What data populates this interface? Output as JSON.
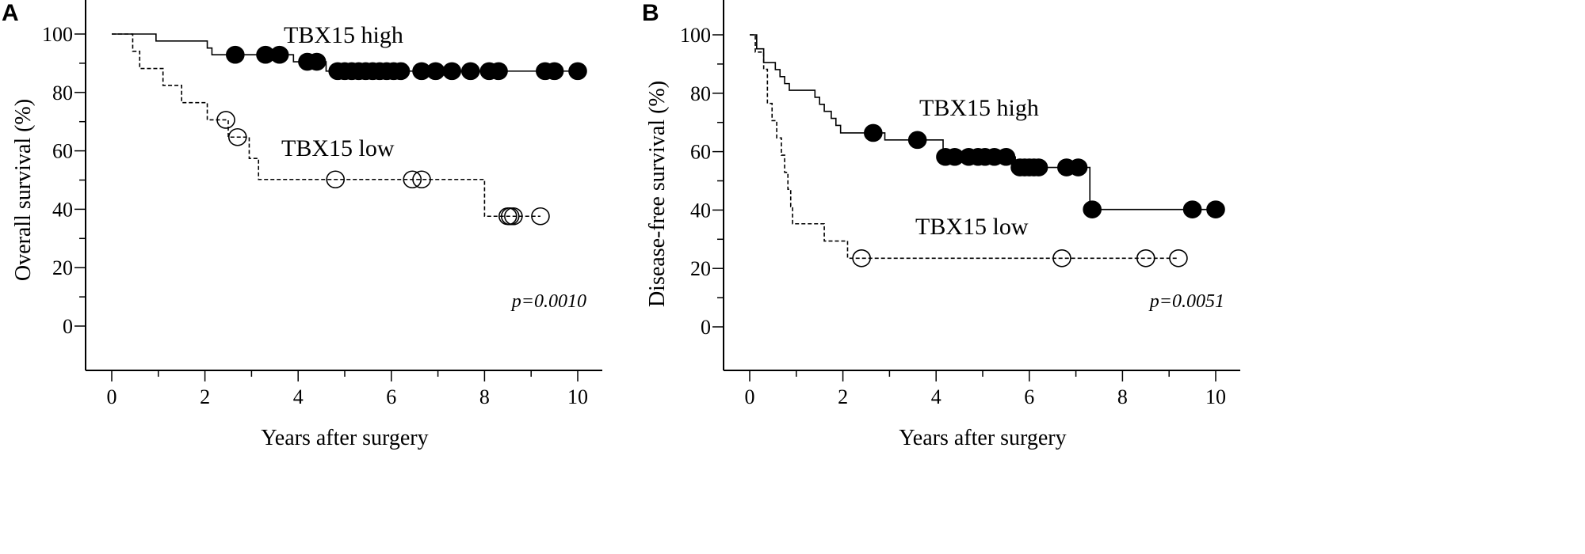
{
  "chart_data": [
    {
      "type": "line",
      "panel": "A",
      "xlabel": "Years after surgery",
      "ylabel": "Overall survival (%)",
      "xlim": [
        0,
        10
      ],
      "ylim": [
        0,
        100
      ],
      "xticks": [
        0,
        2,
        4,
        6,
        8,
        10
      ],
      "yticks": [
        0,
        20,
        40,
        60,
        80,
        100
      ],
      "annotation": "p=0.0010",
      "series": [
        {
          "name": "TBX15 high",
          "style": "solid",
          "marker": "filled-circle",
          "steps": [
            [
              0,
              100
            ],
            [
              0.95,
              97.6
            ],
            [
              2.05,
              95.2
            ],
            [
              2.15,
              92.9
            ],
            [
              3.9,
              90.5
            ],
            [
              4.6,
              87.3
            ],
            [
              10,
              87.3
            ]
          ],
          "censored": [
            [
              2.65,
              92.9
            ],
            [
              3.3,
              92.9
            ],
            [
              3.6,
              92.9
            ],
            [
              4.2,
              90.5
            ],
            [
              4.4,
              90.5
            ],
            [
              4.85,
              87.3
            ],
            [
              5.0,
              87.3
            ],
            [
              5.15,
              87.3
            ],
            [
              5.3,
              87.3
            ],
            [
              5.45,
              87.3
            ],
            [
              5.6,
              87.3
            ],
            [
              5.75,
              87.3
            ],
            [
              5.9,
              87.3
            ],
            [
              6.05,
              87.3
            ],
            [
              6.2,
              87.3
            ],
            [
              6.65,
              87.3
            ],
            [
              6.95,
              87.3
            ],
            [
              7.3,
              87.3
            ],
            [
              7.7,
              87.3
            ],
            [
              8.1,
              87.3
            ],
            [
              8.3,
              87.3
            ],
            [
              9.3,
              87.3
            ],
            [
              9.5,
              87.3
            ],
            [
              10,
              87.3
            ]
          ]
        },
        {
          "name": "TBX15 low",
          "style": "dashed",
          "marker": "open-circle",
          "steps": [
            [
              0,
              100
            ],
            [
              0.45,
              94.1
            ],
            [
              0.6,
              88.2
            ],
            [
              1.1,
              82.4
            ],
            [
              1.5,
              76.5
            ],
            [
              2.05,
              70.6
            ],
            [
              2.5,
              64.7
            ],
            [
              2.95,
              57.4
            ],
            [
              3.15,
              50.2
            ],
            [
              8.0,
              37.6
            ],
            [
              9.2,
              37.6
            ]
          ],
          "censored": [
            [
              2.45,
              70.6
            ],
            [
              2.7,
              64.7
            ],
            [
              4.8,
              50.2
            ],
            [
              6.45,
              50.2
            ],
            [
              6.65,
              50.2
            ],
            [
              8.5,
              37.6
            ],
            [
              8.55,
              37.6
            ],
            [
              8.62,
              37.6
            ],
            [
              9.2,
              37.6
            ]
          ]
        }
      ]
    },
    {
      "type": "line",
      "panel": "B",
      "xlabel": "Years after surgery",
      "ylabel": "Disease-free survival (%)",
      "xlim": [
        0,
        10
      ],
      "ylim": [
        0,
        100
      ],
      "xticks": [
        0,
        2,
        4,
        6,
        8,
        10
      ],
      "yticks": [
        0,
        20,
        40,
        60,
        80,
        100
      ],
      "annotation": "p=0.0051",
      "series": [
        {
          "name": "TBX15 high",
          "style": "solid",
          "marker": "filled-circle",
          "steps": [
            [
              0,
              100
            ],
            [
              0.15,
              95.2
            ],
            [
              0.3,
              90.5
            ],
            [
              0.55,
              88.1
            ],
            [
              0.65,
              85.7
            ],
            [
              0.75,
              83.3
            ],
            [
              0.85,
              81.0
            ],
            [
              1.4,
              78.6
            ],
            [
              1.5,
              76.2
            ],
            [
              1.6,
              73.8
            ],
            [
              1.75,
              71.4
            ],
            [
              1.85,
              69.0
            ],
            [
              1.95,
              66.4
            ],
            [
              2.9,
              64.0
            ],
            [
              4.15,
              58.2
            ],
            [
              5.7,
              54.6
            ],
            [
              7.3,
              40.2
            ],
            [
              10,
              40.2
            ]
          ],
          "censored": [
            [
              2.65,
              66.4
            ],
            [
              3.6,
              64.0
            ],
            [
              4.2,
              58.2
            ],
            [
              4.4,
              58.2
            ],
            [
              4.7,
              58.2
            ],
            [
              4.9,
              58.2
            ],
            [
              5.05,
              58.2
            ],
            [
              5.25,
              58.2
            ],
            [
              5.5,
              58.2
            ],
            [
              5.8,
              54.6
            ],
            [
              5.9,
              54.6
            ],
            [
              6.0,
              54.6
            ],
            [
              6.1,
              54.6
            ],
            [
              6.2,
              54.6
            ],
            [
              6.8,
              54.6
            ],
            [
              7.05,
              54.6
            ],
            [
              7.35,
              40.2
            ],
            [
              9.5,
              40.2
            ],
            [
              10,
              40.2
            ]
          ]
        },
        {
          "name": "TBX15 low",
          "style": "dashed",
          "marker": "open-circle",
          "steps": [
            [
              0,
              100
            ],
            [
              0.12,
              94.1
            ],
            [
              0.3,
              88.2
            ],
            [
              0.38,
              76.5
            ],
            [
              0.48,
              70.6
            ],
            [
              0.58,
              64.7
            ],
            [
              0.68,
              58.8
            ],
            [
              0.75,
              52.9
            ],
            [
              0.82,
              47.1
            ],
            [
              0.88,
              41.2
            ],
            [
              0.92,
              35.3
            ],
            [
              1.6,
              29.4
            ],
            [
              2.1,
              23.5
            ],
            [
              9.2,
              23.5
            ]
          ],
          "censored": [
            [
              2.4,
              23.5
            ],
            [
              6.7,
              23.5
            ],
            [
              8.5,
              23.5
            ],
            [
              9.2,
              23.5
            ]
          ]
        }
      ]
    }
  ]
}
